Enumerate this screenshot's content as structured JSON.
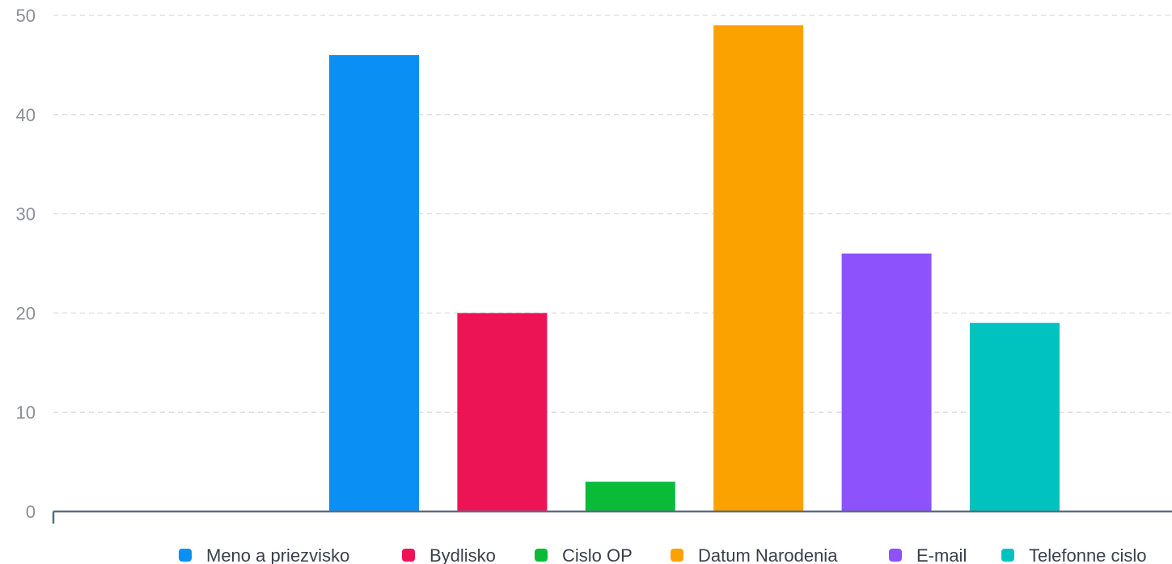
{
  "chart_data": {
    "type": "bar",
    "categories": [
      "Meno a priezvisko",
      "Bydlisko",
      "Cislo OP",
      "Datum Narodenia",
      "E-mail",
      "Telefonne cislo"
    ],
    "values": [
      46,
      20,
      3,
      49,
      26,
      19
    ],
    "colors": [
      "#0a8ff5",
      "#ed1456",
      "#0abb38",
      "#fca200",
      "#8d52fc",
      "#00c2be"
    ],
    "yticks": [
      0,
      10,
      20,
      30,
      40,
      50
    ],
    "ylim": [
      0,
      50
    ],
    "grid": true,
    "legend_position": "bottom"
  }
}
